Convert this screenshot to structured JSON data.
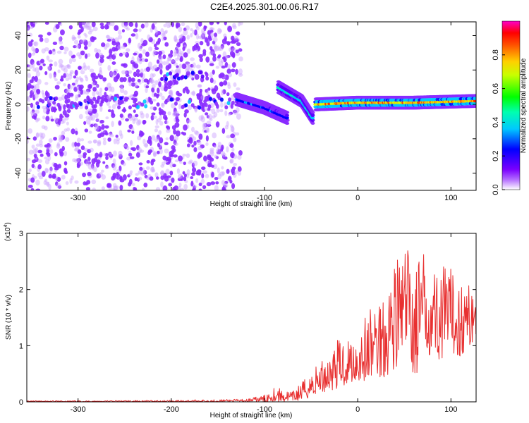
{
  "figure_title": "C2E4.2025.301.00.06.R17",
  "chart_data": [
    {
      "type": "heatmap",
      "title": "C2E4.2025.301.00.06.R17",
      "xlabel": "Height of straight line (km)",
      "ylabel": "Frequency (Hz)",
      "xlim": [
        -355,
        127
      ],
      "ylim": [
        -50,
        48
      ],
      "x_ticks": [
        -300,
        -200,
        -100,
        0,
        100
      ],
      "x_tick_labels": [
        "-300",
        "-200",
        "-100",
        "0",
        "100"
      ],
      "y_ticks": [
        -40,
        -20,
        0,
        20,
        40
      ],
      "y_tick_labels": [
        "-40",
        "-20",
        "0",
        "20",
        "40"
      ],
      "colorbar": {
        "label": "Normalized spectral amplitude",
        "range": [
          0,
          1
        ],
        "ticks": [
          0.0,
          0.2,
          0.4,
          0.6,
          0.8
        ],
        "tick_labels": [
          "0.0",
          "0.2",
          "0.4",
          "0.6",
          "0.8"
        ],
        "colormap": [
          "#ffffff",
          "#6a00ff",
          "#0000ff",
          "#00ffff",
          "#00ff00",
          "#ffff00",
          "#ff8000",
          "#ff0000",
          "#ff00ff"
        ]
      },
      "features": [
        {
          "name": "noise_region",
          "x_range": [
            -355,
            -125
          ],
          "y_range": [
            -50,
            48
          ],
          "level": 0.15
        },
        {
          "name": "band_left",
          "x_range": [
            -355,
            -130
          ],
          "freq": 1,
          "level": 0.3
        },
        {
          "name": "band_descending",
          "points": [
            [
              -130,
              3
            ],
            [
              -100,
              -2
            ],
            [
              -75,
              -8
            ]
          ],
          "level": 0.4
        },
        {
          "name": "band_rising_arm",
          "points": [
            [
              -85,
              10
            ],
            [
              -60,
              2
            ],
            [
              -48,
              -8
            ]
          ],
          "level": 0.5
        },
        {
          "name": "band_right",
          "points": [
            [
              -45,
              0
            ],
            [
              0,
              1
            ],
            [
              60,
              1
            ],
            [
              127,
              2
            ]
          ],
          "level": 0.85
        },
        {
          "name": "patch_upper",
          "points": [
            [
              -210,
              16
            ],
            [
              -165,
              17
            ]
          ],
          "level": 0.4
        }
      ]
    },
    {
      "type": "line",
      "title": "",
      "xlabel": "Height of straight line (km)",
      "ylabel": "SNR (10 * v/v)",
      "y_multiplier": "(x10",
      "y_multiplier_exp": "4",
      "y_multiplier_close": ")",
      "xlim": [
        -355,
        127
      ],
      "ylim": [
        0,
        3
      ],
      "x_ticks": [
        -300,
        -200,
        -100,
        0,
        100
      ],
      "x_tick_labels": [
        "-300",
        "-200",
        "-100",
        "0",
        "100"
      ],
      "y_ticks": [
        0,
        1,
        2,
        3
      ],
      "y_tick_labels": [
        "0",
        "1",
        "2",
        "3"
      ],
      "series": [
        {
          "name": "SNR",
          "color": "#e83030",
          "x": [
            -355,
            -300,
            -200,
            -150,
            -120,
            -100,
            -90,
            -80,
            -70,
            -60,
            -50,
            -40,
            -30,
            -20,
            -10,
            0,
            10,
            20,
            30,
            40,
            50,
            56,
            60,
            70,
            80,
            90,
            100,
            110,
            120,
            127
          ],
          "envelope": [
            0.02,
            0.02,
            0.03,
            0.04,
            0.05,
            0.12,
            0.28,
            0.22,
            0.18,
            0.35,
            0.55,
            0.75,
            0.9,
            1.15,
            1.2,
            1.25,
            1.6,
            1.9,
            2.2,
            2.6,
            2.7,
            3.0,
            2.6,
            2.7,
            2.5,
            2.45,
            2.4,
            2.2,
            2.1,
            2.1
          ],
          "floor": [
            0.0,
            0.0,
            0.0,
            0.0,
            0.0,
            0.0,
            0.01,
            0.0,
            0.01,
            0.03,
            0.08,
            0.15,
            0.2,
            0.25,
            0.3,
            0.35,
            0.35,
            0.4,
            0.45,
            0.6,
            0.8,
            0.9,
            0.25,
            0.8,
            0.85,
            0.7,
            0.85,
            0.8,
            0.95,
            1.2
          ]
        }
      ]
    }
  ]
}
